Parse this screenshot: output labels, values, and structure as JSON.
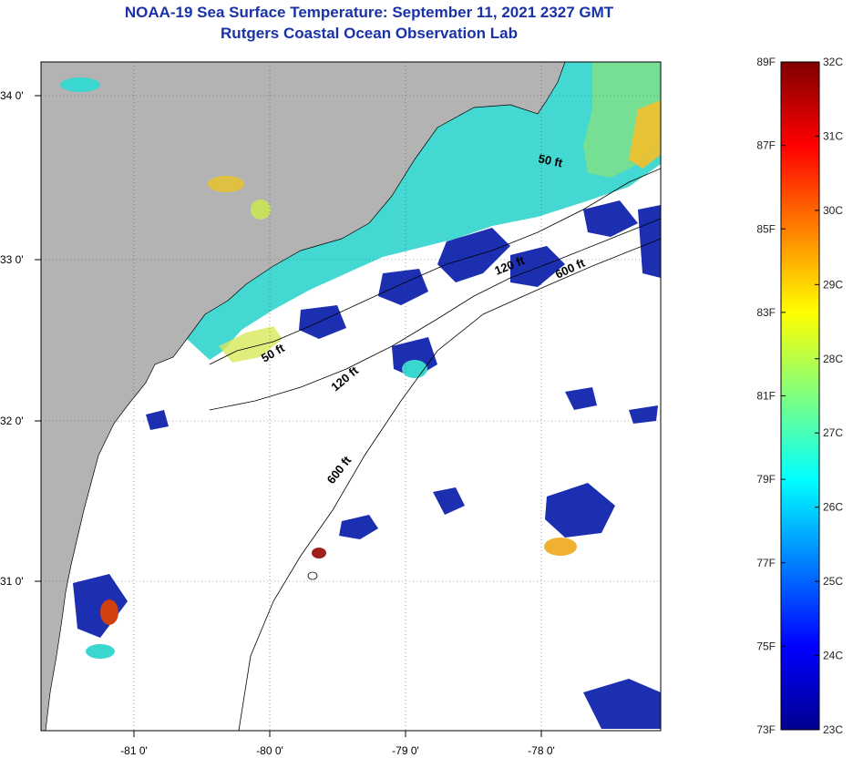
{
  "title": {
    "line1": "NOAA-19 Sea Surface Temperature:  September 11, 2021 2327 GMT",
    "line2": "Rutgers Coastal Ocean Observation Lab"
  },
  "map": {
    "x_ticks": [
      "-81 0'",
      "-80 0'",
      "-79 0'",
      "-78 0'"
    ],
    "y_ticks": [
      "34 0'",
      "33 0'",
      "32 0'",
      "31 0'"
    ],
    "contour_labels": [
      "50 ft",
      "120 ft",
      "600 ft",
      "50 ft",
      "120 ft",
      "600 ft"
    ],
    "colors": {
      "land": "#b3b3b3",
      "cloud": "#ffffff",
      "shelf_water": "#3ad6d0",
      "warm_water": "#f5c02a",
      "cold_patch": "#1b2fb0"
    }
  },
  "colorbar": {
    "fahrenheit": [
      "89F",
      "87F",
      "85F",
      "83F",
      "81F",
      "79F",
      "77F",
      "75F",
      "73F"
    ],
    "celsius": [
      "32C",
      "31C",
      "30C",
      "29C",
      "28C",
      "27C",
      "26C",
      "25C",
      "24C",
      "23C"
    ],
    "colormap": [
      "#00008f",
      "#0000ff",
      "#0080ff",
      "#00ffff",
      "#80ff80",
      "#ffff00",
      "#ff8000",
      "#ff0000",
      "#800000"
    ]
  }
}
